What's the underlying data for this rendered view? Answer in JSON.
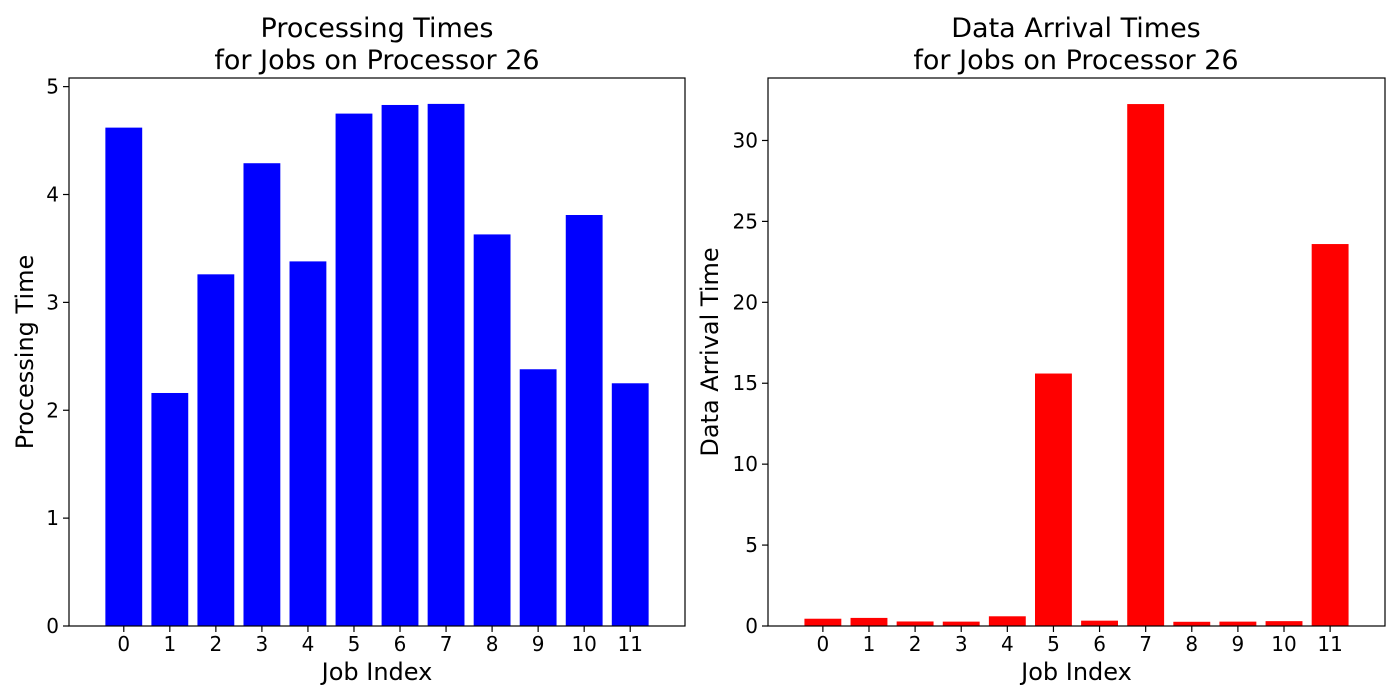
{
  "chart_data": [
    {
      "type": "bar",
      "title": "Processing Times\nfor Jobs on Processor 26",
      "xlabel": "Job Index",
      "ylabel": "Processing Time",
      "categories": [
        "0",
        "1",
        "2",
        "3",
        "4",
        "5",
        "6",
        "7",
        "8",
        "9",
        "10",
        "11"
      ],
      "values": [
        4.62,
        2.16,
        3.26,
        4.29,
        3.38,
        4.75,
        4.83,
        4.84,
        3.63,
        2.38,
        3.81,
        2.25
      ],
      "yticks": [
        "0",
        "1",
        "2",
        "3",
        "4",
        "5"
      ],
      "ylim": [
        0,
        5.08
      ],
      "color": "#0000ff",
      "grid": false
    },
    {
      "type": "bar",
      "title": "Data Arrival Times\nfor Jobs on Processor 26",
      "xlabel": "Job Index",
      "ylabel": "Data Arrival Time",
      "categories": [
        "0",
        "1",
        "2",
        "3",
        "4",
        "5",
        "6",
        "7",
        "8",
        "9",
        "10",
        "11"
      ],
      "values": [
        0.45,
        0.5,
        0.28,
        0.27,
        0.6,
        15.6,
        0.33,
        32.25,
        0.26,
        0.27,
        0.3,
        23.6
      ],
      "yticks": [
        "0",
        "5",
        "10",
        "15",
        "20",
        "25",
        "30"
      ],
      "ylim": [
        0,
        33.86
      ],
      "color": "#ff0000",
      "grid": false
    }
  ]
}
